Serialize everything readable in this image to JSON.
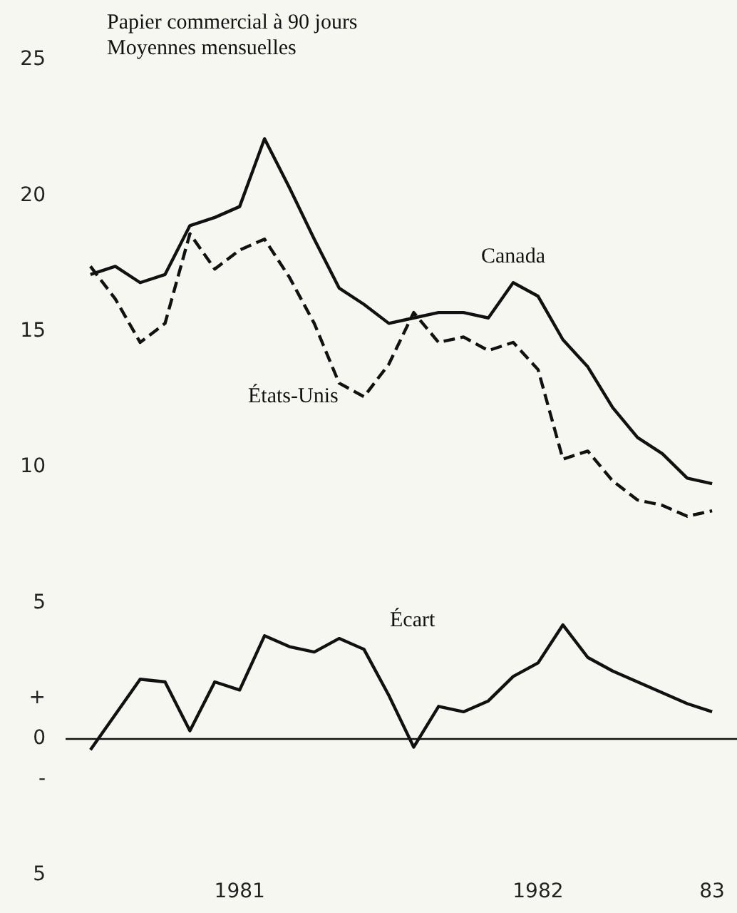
{
  "chart_data": {
    "type": "line",
    "title": "Papier commercial à 90 jours",
    "subtitle": "Moyennes mensuelles",
    "x": [
      "1981-01",
      "1981-02",
      "1981-03",
      "1981-04",
      "1981-05",
      "1981-06",
      "1981-07",
      "1981-08",
      "1981-09",
      "1981-10",
      "1981-11",
      "1981-12",
      "1982-01",
      "1982-02",
      "1982-03",
      "1982-04",
      "1982-05",
      "1982-06",
      "1982-07",
      "1982-08",
      "1982-09",
      "1982-10",
      "1982-11",
      "1982-12",
      "1983-01",
      "1983-02"
    ],
    "series": [
      {
        "name": "Canada",
        "color": "#111111",
        "line_style": "solid",
        "values": [
          17.1,
          17.4,
          16.8,
          17.1,
          18.9,
          19.2,
          19.6,
          22.1,
          20.3,
          18.4,
          16.6,
          16.0,
          15.3,
          15.5,
          15.7,
          15.7,
          15.5,
          16.8,
          16.3,
          14.7,
          13.7,
          12.2,
          11.1,
          10.5,
          9.6,
          9.4
        ]
      },
      {
        "name": "États-Unis",
        "color": "#111111",
        "line_style": "dashed",
        "values": [
          17.4,
          16.2,
          14.6,
          15.3,
          18.6,
          17.3,
          18.0,
          18.4,
          17.0,
          15.3,
          13.1,
          12.6,
          13.8,
          15.7,
          14.6,
          14.8,
          14.3,
          14.6,
          13.6,
          10.3,
          10.6,
          9.5,
          8.8,
          8.6,
          8.2,
          8.4
        ]
      },
      {
        "name": "Écart",
        "color": "#111111",
        "line_style": "solid",
        "values": [
          -0.4,
          0.9,
          2.2,
          2.1,
          0.3,
          2.1,
          1.8,
          3.8,
          3.4,
          3.2,
          3.7,
          3.3,
          1.6,
          -0.3,
          1.2,
          1.0,
          1.4,
          2.3,
          2.8,
          4.2,
          3.0,
          2.5,
          2.1,
          1.7,
          1.3,
          1.0
        ]
      }
    ],
    "xlim": [
      "1980-12",
      "1983-03"
    ],
    "xticks": [
      {
        "value": "1981-07",
        "label": "1981"
      },
      {
        "value": "1982-07",
        "label": "1982"
      },
      {
        "value": "1983-02",
        "label": "83"
      }
    ],
    "ylim": [
      -5,
      25
    ],
    "yticks": [
      25,
      20,
      15,
      10,
      5,
      {
        "value": 1.5,
        "label": "+"
      },
      0,
      {
        "value": -1.5,
        "label": "-"
      },
      {
        "value": -5,
        "label": "5"
      }
    ],
    "ref_lines": [
      {
        "axis": "y",
        "value": 0,
        "color": "#111111"
      }
    ],
    "grid": false,
    "legend": false,
    "marker": "none"
  }
}
